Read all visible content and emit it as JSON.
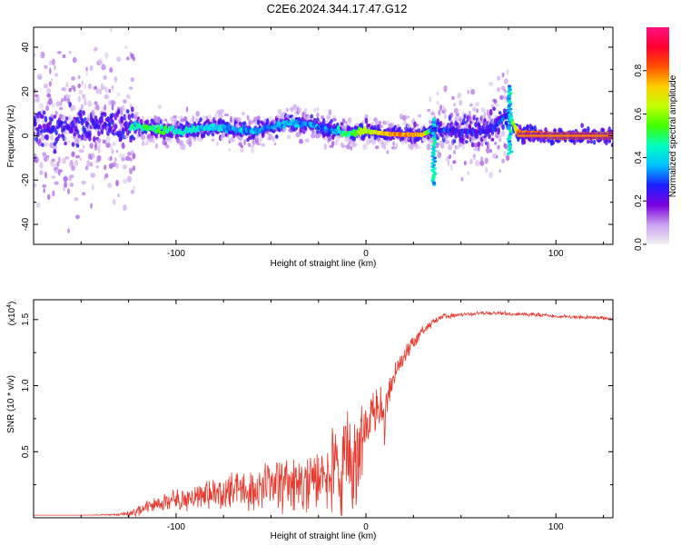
{
  "title": "C2E6.2024.344.17.47.G12",
  "chart_data": [
    {
      "type": "heatmap",
      "xlabel": "Height of straight line (km)",
      "ylabel": "Frequency (Hz)",
      "xlim": [
        -175,
        130
      ],
      "ylim": [
        -49,
        49
      ],
      "xticks": [
        -100,
        0,
        100
      ],
      "yticks": [
        -40,
        -20,
        0,
        20,
        40
      ],
      "colorbar": {
        "label": "Normalized spectral amplitude",
        "range": [
          0,
          1
        ],
        "ticks": [
          "0.0",
          "0.2",
          "0.4",
          "0.6",
          "0.8"
        ],
        "colormap": [
          "#f0f0f0",
          "#c9a0f0",
          "#7a00e0",
          "#1a20ff",
          "#00c0ff",
          "#00ffc0",
          "#40ff00",
          "#c0ff00",
          "#ffd000",
          "#ff5000",
          "#ff0030",
          "#ff1080"
        ]
      },
      "ridge": [
        {
          "x": -122,
          "f": 4,
          "amp": 0.45
        },
        {
          "x": -110,
          "f": 3,
          "amp": 0.5
        },
        {
          "x": -100,
          "f": 2,
          "amp": 0.45
        },
        {
          "x": -90,
          "f": 3,
          "amp": 0.4
        },
        {
          "x": -80,
          "f": 4,
          "amp": 0.4
        },
        {
          "x": -70,
          "f": 3,
          "amp": 0.35
        },
        {
          "x": -60,
          "f": 2,
          "amp": 0.35
        },
        {
          "x": -50,
          "f": 4,
          "amp": 0.35
        },
        {
          "x": -40,
          "f": 6,
          "amp": 0.35
        },
        {
          "x": -30,
          "f": 5,
          "amp": 0.35
        },
        {
          "x": -20,
          "f": 3,
          "amp": 0.3
        },
        {
          "x": -10,
          "f": 1,
          "amp": 0.5
        },
        {
          "x": 0,
          "f": 2,
          "amp": 0.6
        },
        {
          "x": 10,
          "f": 1,
          "amp": 0.75
        },
        {
          "x": 20,
          "f": 0.5,
          "amp": 0.75
        },
        {
          "x": 30,
          "f": 0.5,
          "amp": 0.75
        },
        {
          "x": 35,
          "f": 3,
          "amp": 0.3
        },
        {
          "x": 50,
          "f": 2,
          "amp": 0.25
        },
        {
          "x": 65,
          "f": 2,
          "amp": 0.25
        },
        {
          "x": 75,
          "f": 10,
          "amp": 0.3
        },
        {
          "x": 80,
          "f": 1,
          "amp": 0.8
        },
        {
          "x": 100,
          "f": 0,
          "amp": 0.8
        },
        {
          "x": 130,
          "f": 0,
          "amp": 0.8
        }
      ]
    },
    {
      "type": "line",
      "xlabel": "Height of straight line (km)",
      "ylabel": "SNR (10 * v/v)",
      "scale_label": "(x10",
      "scale_exp": "4",
      "scale_close": ")",
      "xlim": [
        -175,
        130
      ],
      "ylim": [
        0,
        1.65
      ],
      "xticks": [
        -100,
        0,
        100
      ],
      "yticks": [
        0.5,
        1.0,
        1.5
      ],
      "ytick_labels": [
        "0.5",
        "1.0",
        "1.5"
      ],
      "series": [
        {
          "color": "#e83a2e",
          "x": [
            -175,
            -150,
            -130,
            -125,
            -120,
            -115,
            -110,
            -105,
            -100,
            -95,
            -90,
            -85,
            -80,
            -75,
            -70,
            -65,
            -60,
            -55,
            -50,
            -45,
            -40,
            -35,
            -30,
            -25,
            -20,
            -15,
            -10,
            -7,
            -5,
            0,
            5,
            8,
            10,
            12,
            15,
            20,
            25,
            30,
            35,
            40,
            50,
            60,
            70,
            80,
            90,
            100,
            110,
            120,
            130
          ],
          "y": [
            0.02,
            0.02,
            0.03,
            0.05,
            0.08,
            0.12,
            0.15,
            0.18,
            0.2,
            0.22,
            0.24,
            0.26,
            0.28,
            0.3,
            0.32,
            0.33,
            0.34,
            0.36,
            0.38,
            0.4,
            0.43,
            0.46,
            0.5,
            0.55,
            0.6,
            0.65,
            0.7,
            0.72,
            0.75,
            0.85,
            0.95,
            1.0,
            0.9,
            1.05,
            1.15,
            1.28,
            1.38,
            1.45,
            1.5,
            1.54,
            1.55,
            1.56,
            1.56,
            1.55,
            1.55,
            1.54,
            1.53,
            1.53,
            1.52
          ],
          "noise": [
            0.0,
            0.0,
            0.01,
            0.03,
            0.06,
            0.08,
            0.09,
            0.1,
            0.12,
            0.13,
            0.14,
            0.15,
            0.16,
            0.17,
            0.18,
            0.2,
            0.22,
            0.24,
            0.26,
            0.28,
            0.3,
            0.32,
            0.35,
            0.4,
            0.45,
            0.5,
            0.55,
            0.55,
            0.5,
            0.3,
            0.25,
            0.2,
            0.2,
            0.15,
            0.12,
            0.1,
            0.08,
            0.05,
            0.04,
            0.03,
            0.02,
            0.02,
            0.02,
            0.02,
            0.02,
            0.02,
            0.02,
            0.02,
            0.02
          ]
        }
      ]
    }
  ]
}
